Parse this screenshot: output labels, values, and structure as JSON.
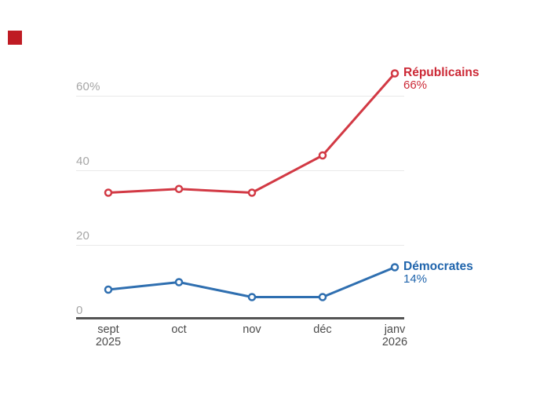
{
  "brand": {
    "logo_color": "#bf1b23"
  },
  "chart_data": {
    "type": "line",
    "title": "",
    "xlabel": "",
    "ylabel": "",
    "ylim": [
      0,
      70
    ],
    "grid": "horizontal-only",
    "legend_position": "end-of-line-labels",
    "categories": [
      {
        "label": "sept",
        "sub": "2025"
      },
      {
        "label": "oct",
        "sub": ""
      },
      {
        "label": "nov",
        "sub": ""
      },
      {
        "label": "déc",
        "sub": ""
      },
      {
        "label": "janv",
        "sub": "2026"
      }
    ],
    "yticks": [
      {
        "label": "60%",
        "value": 60
      },
      {
        "label": "40",
        "value": 40
      },
      {
        "label": "20",
        "value": 20
      },
      {
        "label": "0",
        "value": 0
      }
    ],
    "series": [
      {
        "name": "Républicains",
        "values": [
          34,
          35,
          34,
          44,
          66
        ],
        "end_value_label": "66%",
        "color": "#d23944",
        "text_color": "#cc2936"
      },
      {
        "name": "Démocrates",
        "values": [
          8,
          10,
          6,
          6,
          14
        ],
        "end_value_label": "14%",
        "color": "#2f6fb0",
        "text_color": "#1f64ac"
      }
    ],
    "colors": {
      "grid": "#e9e9e9",
      "axis": "#545454",
      "ytick_text": "#a6a6a6",
      "xtick_text": "#4b4b4b"
    }
  }
}
